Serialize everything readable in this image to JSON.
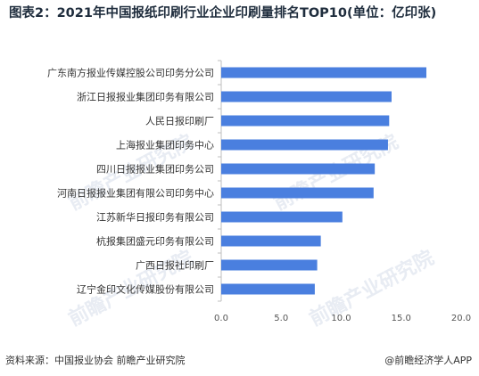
{
  "title": "图表2：2021年中国报纸印刷行业企业印刷量排名TOP10(单位：亿印张)",
  "watermark": "前瞻产业研究院",
  "footer": {
    "source": "资料来源：中国报业协会 前瞻产业研究院",
    "brand": "@前瞻经济学人APP"
  },
  "colors": {
    "bar": "#4a7fdf",
    "axis": "#bfbfbf"
  },
  "chart_data": {
    "type": "bar",
    "orientation": "horizontal",
    "categories": [
      "广东南方报业传媒控股公司印务分公司",
      "浙江日报报业集团印务有限公司",
      "人民日报印刷厂",
      "上海报业集团印务中心",
      "四川日报报业集团印务公司",
      "河南日报报业集团有限公司印务中心",
      "江苏新华日报印务有限公司",
      "杭报集团盛元印务有限公司",
      "广西日报社印刷厂",
      "辽宁金印文化传媒股份有限公司"
    ],
    "values": [
      17.1,
      14.2,
      14.0,
      13.9,
      12.8,
      12.7,
      10.1,
      8.3,
      8.0,
      7.8
    ],
    "xlim": [
      0,
      20
    ],
    "xticks": [
      "0.0",
      "5.0",
      "10.0",
      "15.0",
      "20.0"
    ],
    "tick_values": [
      0,
      5,
      10,
      15,
      20
    ]
  }
}
